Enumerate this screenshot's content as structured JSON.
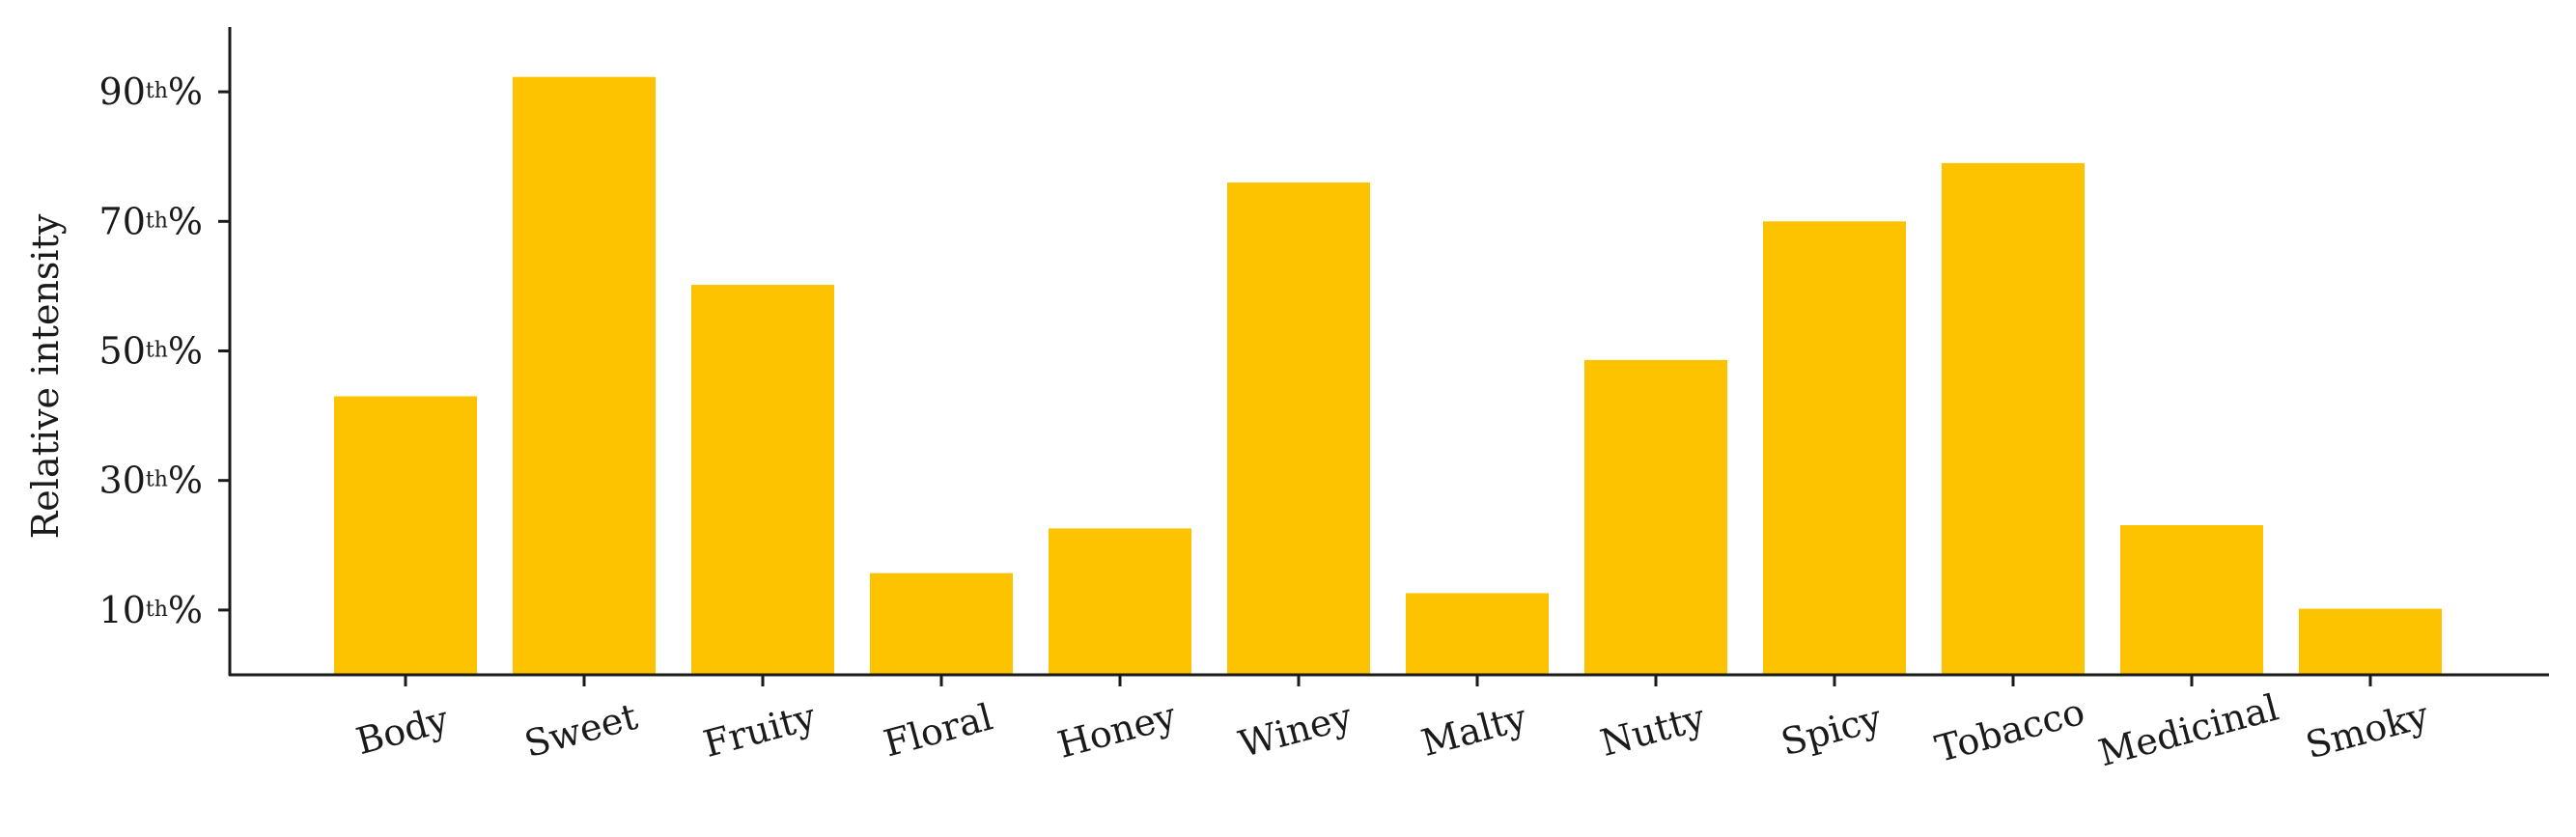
{
  "chart_data": {
    "type": "bar",
    "title": "",
    "xlabel": "",
    "ylabel": "Relative intensity",
    "categories": [
      "Body",
      "Sweet",
      "Fruity",
      "Floral",
      "Honey",
      "Winey",
      "Malty",
      "Nutty",
      "Spicy",
      "Tobacco",
      "Medicinal",
      "Smoky"
    ],
    "values": [
      43,
      92.3,
      60.2,
      15.7,
      22.6,
      76,
      12.6,
      48.6,
      70,
      79,
      23.1,
      10.2
    ],
    "ylim": [
      0,
      100
    ],
    "yticks": [
      {
        "value": 10,
        "number": "10",
        "suffix": "th",
        "percent": "%"
      },
      {
        "value": 30,
        "number": "30",
        "suffix": "th",
        "percent": "%"
      },
      {
        "value": 50,
        "number": "50",
        "suffix": "th",
        "percent": "%"
      },
      {
        "value": 70,
        "number": "70",
        "suffix": "th",
        "percent": "%"
      },
      {
        "value": 90,
        "number": "90",
        "suffix": "th",
        "percent": "%"
      }
    ],
    "grid": false,
    "legend": "none",
    "bar_color": "#FDC300",
    "axis_color": "#1a1a1a"
  }
}
